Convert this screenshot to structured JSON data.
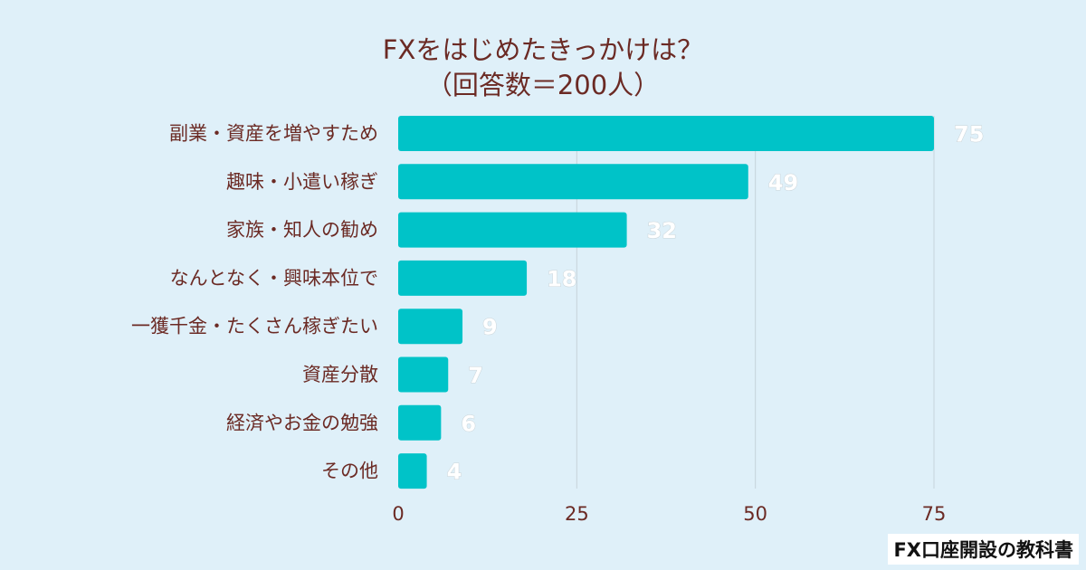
{
  "chart_data": {
    "type": "bar",
    "orientation": "horizontal",
    "title": "FXをはじめたきっかけは？",
    "subtitle": "（回答数＝200人）",
    "categories": [
      "副業・資産を増やすため",
      "趣味・小遣い稼ぎ",
      "家族・知人の勧め",
      "なんとなく・興味本位で",
      "一獲千金・たくさん稼ぎたい",
      "資産分散",
      "経済やお金の勉強",
      "その他"
    ],
    "values": [
      75,
      49,
      32,
      18,
      9,
      7,
      6,
      4
    ],
    "xlim": [
      0,
      75
    ],
    "xticks": [
      0,
      25,
      50,
      75
    ],
    "xlabel": "",
    "ylabel": "",
    "grid": true,
    "bar_color": "#00c3c8"
  },
  "source": "FX口座開設の教科書"
}
